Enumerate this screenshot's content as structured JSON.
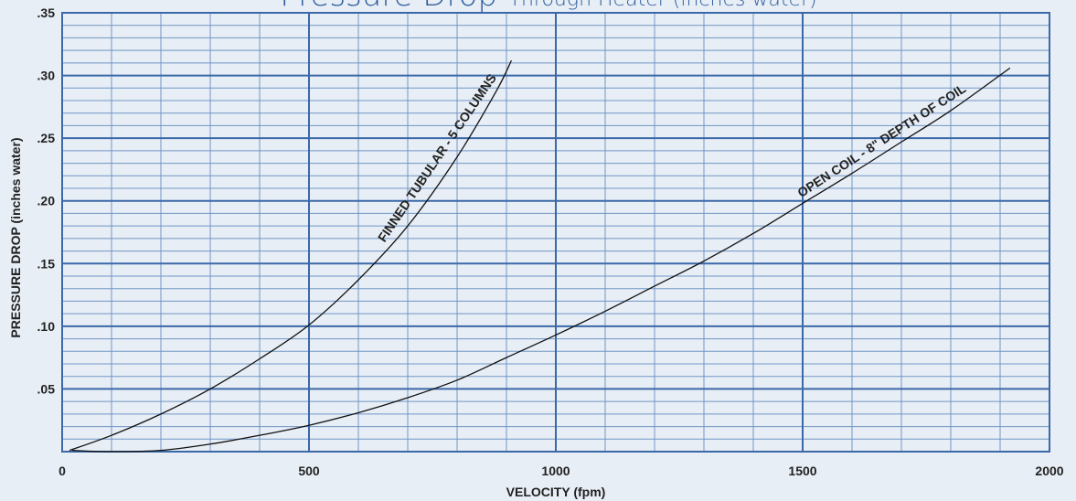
{
  "chart_data": {
    "type": "line",
    "title": "Pressure Drop",
    "subtitle": "Through Heater (inches water)",
    "xlabel": "VELOCITY (fpm)",
    "ylabel": "PRESSURE DROP (inches water)",
    "xlim": [
      0,
      2000
    ],
    "ylim": [
      0,
      0.35
    ],
    "x_ticks": [
      {
        "value": 0,
        "label": "0"
      },
      {
        "value": 500,
        "label": "500"
      },
      {
        "value": 1000,
        "label": "1000"
      },
      {
        "value": 1500,
        "label": "1500"
      },
      {
        "value": 2000,
        "label": "2000"
      }
    ],
    "y_ticks": [
      {
        "value": 0.05,
        "label": ".05"
      },
      {
        "value": 0.1,
        "label": ".10"
      },
      {
        "value": 0.15,
        "label": ".15"
      },
      {
        "value": 0.2,
        "label": ".20"
      },
      {
        "value": 0.25,
        "label": ".25"
      },
      {
        "value": 0.3,
        "label": ".30"
      },
      {
        "value": 0.35,
        "label": ".35"
      }
    ],
    "grid": true,
    "minor_grid": {
      "x_step": 100,
      "y_step": 0.01
    },
    "series": [
      {
        "name": "FINNED TUBULAR - 5 COLUMNS",
        "x": [
          15,
          100,
          200,
          300,
          400,
          500,
          600,
          700,
          800,
          880,
          910
        ],
        "y": [
          0.001,
          0.013,
          0.03,
          0.05,
          0.074,
          0.101,
          0.137,
          0.18,
          0.235,
          0.288,
          0.312
        ]
      },
      {
        "name": "OPEN COIL - 8\" DEPTH OF COIL",
        "x": [
          20,
          100,
          200,
          300,
          400,
          500,
          600,
          700,
          800,
          900,
          1000,
          1100,
          1200,
          1300,
          1400,
          1500,
          1600,
          1700,
          1800,
          1920
        ],
        "y": [
          0.001,
          0.0,
          0.001,
          0.006,
          0.013,
          0.021,
          0.031,
          0.043,
          0.057,
          0.075,
          0.093,
          0.112,
          0.132,
          0.152,
          0.174,
          0.198,
          0.222,
          0.247,
          0.272,
          0.306
        ]
      }
    ],
    "colors": {
      "background": "#e8eef5",
      "major_grid": "#3a68a8",
      "minor_grid": "#6f95c6",
      "curve": "#111111",
      "title": "#2f5fa0"
    }
  }
}
